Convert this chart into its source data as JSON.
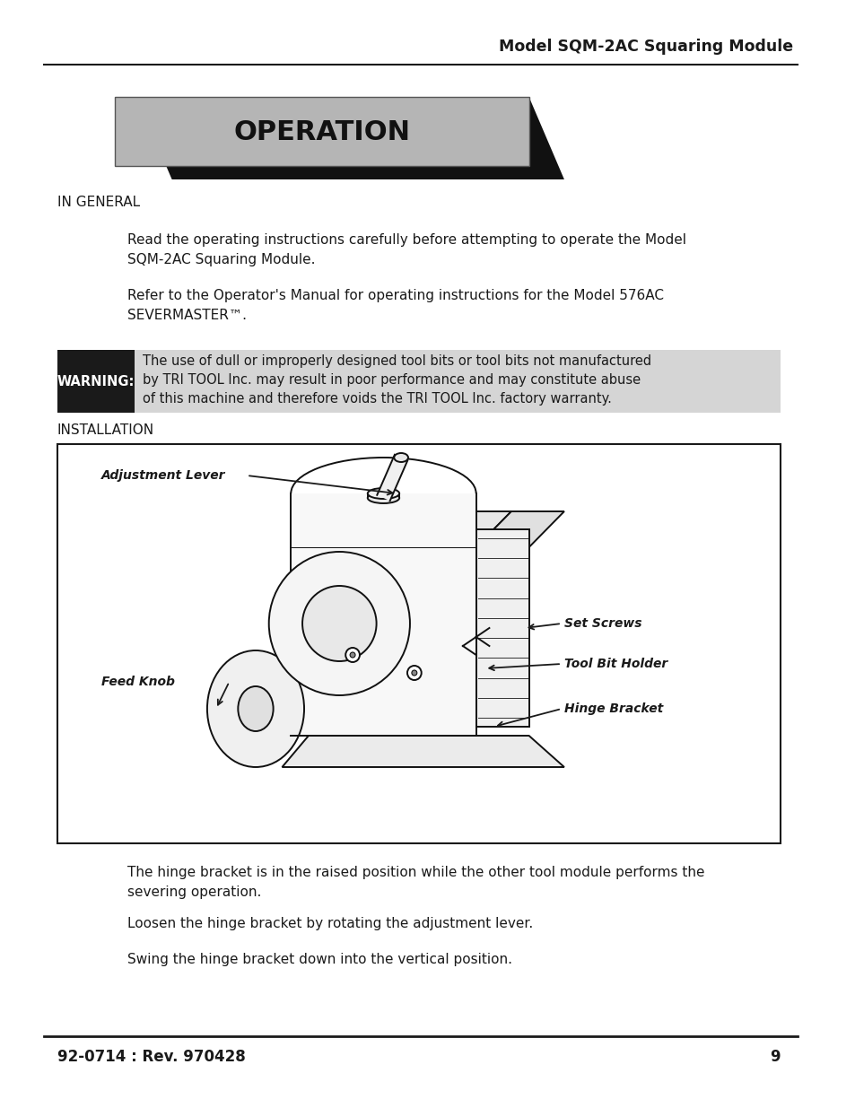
{
  "page_title": "Model SQM-2AC Squaring Module",
  "page_number": "9",
  "footer_left": "92-0714 : Rev. 970428",
  "section_title": "OPERATION",
  "subsection1": "IN GENERAL",
  "para1": "Read the operating instructions carefully before attempting to operate the Model\nSQM-2AC Squaring Module.",
  "para2": "Refer to the Operator's Manual for operating instructions for the Model 576AC\nSEVERMASTER™.",
  "warning_label": "WARNING:",
  "warning_text": "The use of dull or improperly designed tool bits or tool bits not manufactured\nby TRI TOOL Inc. may result in poor performance and may constitute abuse\nof this machine and therefore voids the TRI TOOL Inc. factory warranty.",
  "subsection2": "INSTALLATION",
  "body_text_color": "#1a1a1a",
  "bg_color": "#ffffff",
  "para3": "The hinge bracket is in the raised position while the other tool module performs the\nsevering operation.",
  "para4": "Loosen the hinge bracket by rotating the adjustment lever.",
  "para5": "Swing the hinge bracket down into the vertical position.",
  "diagram_label1": "Adjustment Lever",
  "diagram_label2": "Feed Knob",
  "diagram_label3": "Set Screws",
  "diagram_label4": "Tool Bit Holder",
  "diagram_label5": "Hinge Bracket"
}
